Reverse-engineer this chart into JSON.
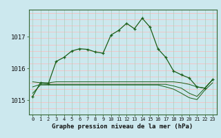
{
  "title": "Graphe pression niveau de la mer (hPa)",
  "background_color": "#cce8ee",
  "line_color": "#1a5e18",
  "x_labels": [
    "0",
    "1",
    "2",
    "3",
    "4",
    "5",
    "6",
    "7",
    "8",
    "9",
    "10",
    "11",
    "12",
    "13",
    "14",
    "15",
    "16",
    "17",
    "18",
    "19",
    "20",
    "21",
    "22",
    "23"
  ],
  "y_ticks": [
    1015,
    1016,
    1017
  ],
  "ylim": [
    1014.55,
    1017.85
  ],
  "line1_x": [
    0,
    1,
    2,
    3,
    4,
    5,
    6,
    7,
    8,
    9,
    10,
    11,
    12,
    13,
    14,
    15,
    16,
    17,
    18,
    19,
    20,
    21,
    22,
    23
  ],
  "line1_y": [
    1015.12,
    1015.55,
    1015.52,
    1016.22,
    1016.35,
    1016.55,
    1016.62,
    1016.6,
    1016.52,
    1016.48,
    1017.05,
    1017.2,
    1017.42,
    1017.25,
    1017.58,
    1017.3,
    1016.62,
    1016.35,
    1015.92,
    1015.8,
    1015.7,
    1015.42,
    1015.38,
    1015.65
  ],
  "line2_x": [
    0,
    1,
    2,
    3,
    4,
    5,
    6,
    7,
    8,
    9,
    10,
    11,
    12,
    13,
    14,
    15,
    16,
    17,
    18,
    19,
    20,
    21,
    22,
    23
  ],
  "line2_y": [
    1015.58,
    1015.55,
    1015.55,
    1015.58,
    1015.58,
    1015.58,
    1015.58,
    1015.58,
    1015.58,
    1015.58,
    1015.58,
    1015.58,
    1015.58,
    1015.58,
    1015.58,
    1015.58,
    1015.58,
    1015.58,
    1015.58,
    1015.55,
    1015.5,
    1015.42,
    1015.38,
    1015.65
  ],
  "line3_x": [
    0,
    1,
    2,
    3,
    4,
    5,
    6,
    7,
    8,
    9,
    10,
    11,
    12,
    13,
    14,
    15,
    16,
    17,
    18,
    19,
    20,
    21,
    22,
    23
  ],
  "line3_y": [
    1015.42,
    1015.5,
    1015.5,
    1015.5,
    1015.5,
    1015.5,
    1015.5,
    1015.5,
    1015.5,
    1015.5,
    1015.5,
    1015.5,
    1015.5,
    1015.5,
    1015.5,
    1015.5,
    1015.5,
    1015.5,
    1015.45,
    1015.38,
    1015.22,
    1015.12,
    1015.38,
    1015.65
  ],
  "line4_x": [
    0,
    1,
    2,
    3,
    4,
    5,
    6,
    7,
    8,
    9,
    10,
    11,
    12,
    13,
    14,
    15,
    16,
    17,
    18,
    19,
    20,
    21,
    22,
    23
  ],
  "line4_y": [
    1015.22,
    1015.48,
    1015.48,
    1015.48,
    1015.48,
    1015.48,
    1015.48,
    1015.48,
    1015.48,
    1015.48,
    1015.48,
    1015.48,
    1015.48,
    1015.48,
    1015.48,
    1015.48,
    1015.48,
    1015.42,
    1015.35,
    1015.22,
    1015.08,
    1015.02,
    1015.32,
    1015.55
  ],
  "h_grid_color": "#ffb8b8",
  "v_grid_color": "#aaccbb",
  "figsize": [
    3.2,
    2.0
  ],
  "dpi": 100
}
